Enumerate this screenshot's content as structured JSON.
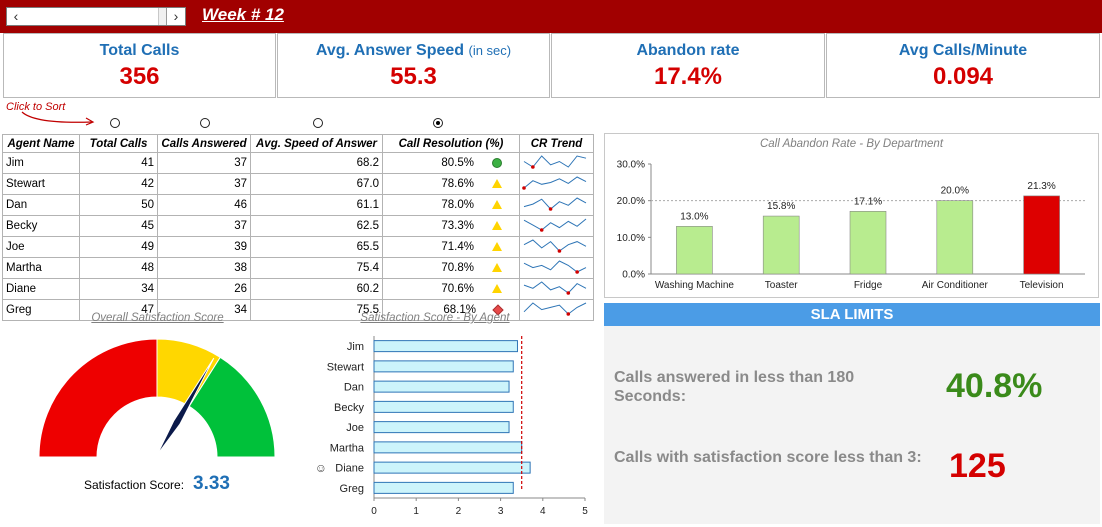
{
  "header": {
    "title": "Week # 12",
    "scroll_left_icon": "chevron-left-icon",
    "scroll_right_icon": "chevron-right-icon",
    "bar_color": "#a10000"
  },
  "kpis": [
    {
      "title": "Total Calls",
      "unit": "",
      "value": "356"
    },
    {
      "title": "Avg. Answer Speed",
      "unit": "(in sec)",
      "value": "55.3"
    },
    {
      "title": "Abandon rate",
      "unit": "",
      "value": "17.4%"
    },
    {
      "title": "Avg Calls/Minute",
      "unit": "",
      "value": "0.094"
    }
  ],
  "sort": {
    "hint": "Click to Sort",
    "selected": "call_resolution"
  },
  "table": {
    "headers": [
      "Agent Name",
      "Total Calls",
      "Calls Answered",
      "Avg. Speed of Answer",
      "Call Resolution (%)",
      "CR Trend"
    ],
    "rows": [
      {
        "name": "Jim",
        "total": "41",
        "answered": "37",
        "speed": "68.2",
        "resolution": "80.5%",
        "status": "green-circle",
        "trend": [
          0.75,
          0.7,
          0.8,
          0.72,
          0.75,
          0.7,
          0.8,
          0.78
        ]
      },
      {
        "name": "Stewart",
        "total": "42",
        "answered": "37",
        "speed": "67.0",
        "resolution": "78.6%",
        "status": "yellow-triangle",
        "trend": [
          0.7,
          0.78,
          0.74,
          0.76,
          0.8,
          0.75,
          0.82,
          0.77
        ]
      },
      {
        "name": "Dan",
        "total": "50",
        "answered": "46",
        "speed": "61.1",
        "resolution": "78.0%",
        "status": "yellow-triangle",
        "trend": [
          0.72,
          0.74,
          0.78,
          0.7,
          0.76,
          0.73,
          0.79,
          0.75
        ]
      },
      {
        "name": "Becky",
        "total": "45",
        "answered": "37",
        "speed": "62.5",
        "resolution": "73.3%",
        "status": "yellow-triangle",
        "trend": [
          0.78,
          0.74,
          0.7,
          0.76,
          0.72,
          0.77,
          0.73,
          0.79
        ]
      },
      {
        "name": "Joe",
        "total": "49",
        "answered": "39",
        "speed": "65.5",
        "resolution": "71.4%",
        "status": "yellow-triangle",
        "trend": [
          0.74,
          0.77,
          0.72,
          0.76,
          0.7,
          0.74,
          0.76,
          0.73
        ]
      },
      {
        "name": "Martha",
        "total": "48",
        "answered": "38",
        "speed": "75.4",
        "resolution": "70.8%",
        "status": "yellow-triangle",
        "trend": [
          0.76,
          0.74,
          0.75,
          0.73,
          0.77,
          0.75,
          0.72,
          0.74
        ]
      },
      {
        "name": "Diane",
        "total": "34",
        "answered": "26",
        "speed": "60.2",
        "resolution": "70.6%",
        "status": "yellow-triangle",
        "trend": [
          0.75,
          0.73,
          0.77,
          0.72,
          0.74,
          0.7,
          0.76,
          0.73
        ]
      },
      {
        "name": "Greg",
        "total": "47",
        "answered": "34",
        "speed": "75.5",
        "resolution": "68.1%",
        "status": "red-diamond",
        "trend": [
          0.72,
          0.76,
          0.73,
          0.74,
          0.75,
          0.71,
          0.74,
          0.76
        ]
      }
    ]
  },
  "chart_data": [
    {
      "type": "bar",
      "title": "Call Abandon Rate - By Department",
      "categories": [
        "Washing Machine",
        "Toaster",
        "Fridge",
        "Air Conditioner",
        "Television"
      ],
      "values": [
        13.0,
        15.8,
        17.1,
        20.0,
        21.3
      ],
      "data_labels": [
        "13.0%",
        "15.8%",
        "17.1%",
        "20.0%",
        "21.3%"
      ],
      "ylim": [
        0,
        30
      ],
      "yticks": [
        "0.0%",
        "10.0%",
        "20.0%",
        "30.0%"
      ],
      "reference_line": 20,
      "colors": [
        "#b8ec8f",
        "#b8ec8f",
        "#b8ec8f",
        "#b8ec8f",
        "#dd0000"
      ]
    },
    {
      "type": "gauge",
      "title": "Overall Satisfaction Score",
      "label": "Satisfaction Score:",
      "value": 3.33,
      "value_text": "3.33",
      "range": [
        0,
        5
      ],
      "bands": [
        {
          "from": 0,
          "to": 2.5,
          "color": "#ee0000"
        },
        {
          "from": 2.5,
          "to": 3.4,
          "color": "#ffd700"
        },
        {
          "from": 3.4,
          "to": 5,
          "color": "#00c13a"
        }
      ]
    },
    {
      "type": "bar",
      "orientation": "horizontal",
      "title": "Satisfaction Score - By Agent",
      "categories": [
        "Jim",
        "Stewart",
        "Dan",
        "Becky",
        "Joe",
        "Martha",
        "Diane",
        "Greg"
      ],
      "values": [
        3.4,
        3.3,
        3.2,
        3.3,
        3.2,
        3.5,
        3.7,
        3.3
      ],
      "xlim": [
        0,
        5
      ],
      "xticks": [
        "0",
        "1",
        "2",
        "3",
        "4",
        "5"
      ],
      "reference_line": 3.5,
      "highlight_agent": "Diane"
    }
  ],
  "sla": {
    "title": "SLA LIMITS",
    "items": [
      {
        "text": "Calls answered in less than 180 Seconds:",
        "value": "40.8%",
        "color": "#3a8a1a"
      },
      {
        "text": "Calls with satisfaction score less than 3:",
        "value": "125",
        "color": "#d40000"
      }
    ]
  }
}
